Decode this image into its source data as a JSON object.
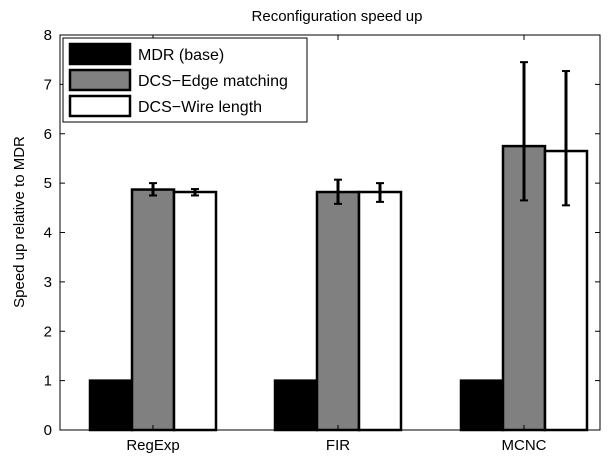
{
  "chart_data": {
    "type": "bar",
    "title": "Reconfiguration speed up",
    "xlabel": "",
    "ylabel": "Speed up relative to MDR",
    "ylim": [
      0,
      8
    ],
    "yticks": [
      0,
      1,
      2,
      3,
      4,
      5,
      6,
      7,
      8
    ],
    "categories": [
      "RegExp",
      "FIR",
      "MCNC"
    ],
    "grid": false,
    "legend_position": "top-left",
    "series": [
      {
        "name": "MDR (base)",
        "color": "#000000",
        "values": [
          1.0,
          1.0,
          1.0
        ],
        "error": [
          null,
          null,
          null
        ]
      },
      {
        "name": "DCS−Edge matching",
        "color": "#808080",
        "values": [
          4.87,
          4.82,
          5.75
        ],
        "error": [
          [
            4.75,
            5.0
          ],
          [
            4.58,
            5.07
          ],
          [
            4.65,
            7.45
          ]
        ]
      },
      {
        "name": "DCS−Wire length",
        "color": "#ffffff",
        "values": [
          4.82,
          4.82,
          5.65
        ],
        "error": [
          [
            4.75,
            4.88
          ],
          [
            4.62,
            5.0
          ],
          [
            4.55,
            7.27
          ]
        ]
      }
    ]
  }
}
